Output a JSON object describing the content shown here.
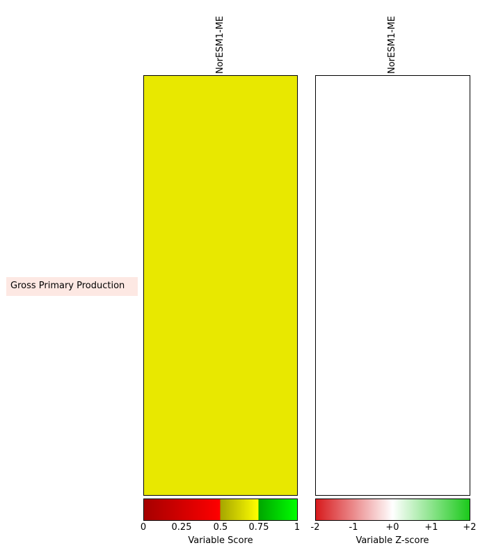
{
  "chart_data": [
    {
      "type": "heatmap",
      "title": "",
      "rows": [
        "Gross Primary Production"
      ],
      "columns": [
        "NorESM1-ME"
      ],
      "values": [
        [
          0.7
        ]
      ],
      "colorbar": {
        "label": "Variable Score",
        "range": [
          0,
          1
        ],
        "ticks": [
          "0",
          "0.25",
          "0.5",
          "0.75",
          "1"
        ],
        "tick_values": [
          0,
          0.25,
          0.5,
          0.75,
          1
        ],
        "segments": [
          {
            "from": 0,
            "to": 0.5,
            "color_start": "#a50000",
            "color_end": "#ff0000"
          },
          {
            "from": 0.5,
            "to": 0.75,
            "color_start": "#a5a500",
            "color_end": "#ffff00"
          },
          {
            "from": 0.75,
            "to": 1,
            "color_start": "#00a500",
            "color_end": "#00ff00"
          }
        ]
      },
      "cell_color": "#e8e800"
    },
    {
      "type": "heatmap",
      "title": "",
      "rows": [
        "Gross Primary Production"
      ],
      "columns": [
        "NorESM1-ME"
      ],
      "values": [
        [
          0
        ]
      ],
      "colorbar": {
        "label": "Variable Z-score",
        "range": [
          -2,
          2
        ],
        "ticks": [
          "-2",
          "-1",
          "+0",
          "+1",
          "+2"
        ],
        "tick_values": [
          -2,
          -1,
          0,
          1,
          2
        ],
        "colors": [
          "#d7191c",
          "#ffffff",
          "#1ac91a"
        ]
      },
      "cell_color": "#ffffff"
    }
  ]
}
